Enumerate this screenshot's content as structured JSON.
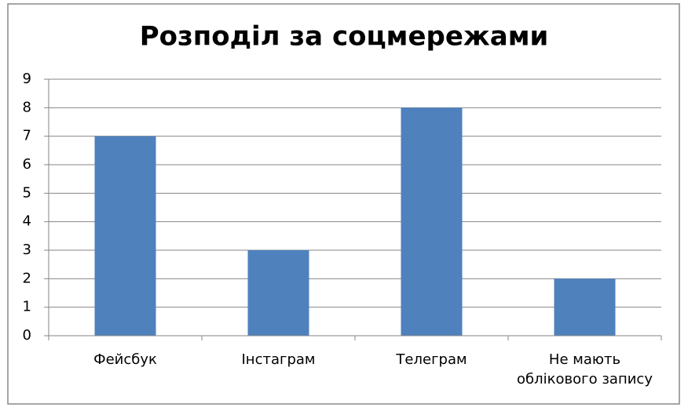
{
  "chart_data": {
    "type": "bar",
    "title": "Розподіл за соцмережами",
    "categories": [
      "Фейсбук",
      "Інстаграм",
      "Телеграм",
      "Не мають облікового запису"
    ],
    "values": [
      7,
      3,
      8,
      2
    ],
    "color": "#4f81bd",
    "ylim": [
      0,
      9
    ],
    "yticks": [
      0,
      1,
      2,
      3,
      4,
      5,
      6,
      7,
      8,
      9
    ],
    "grid": true
  }
}
